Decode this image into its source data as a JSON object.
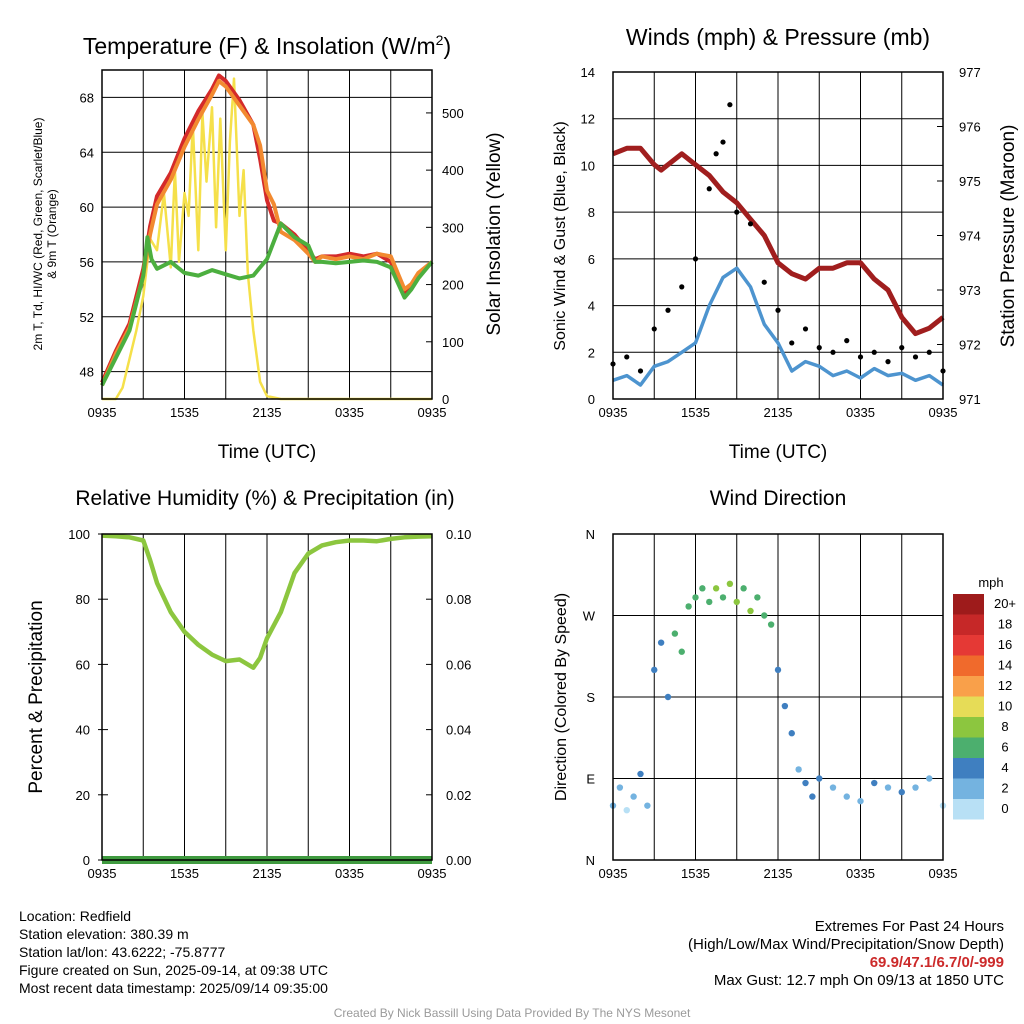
{
  "panels": {
    "temperature": {
      "title": "Temperature (F) & Insolation (W/m²)",
      "title_main": "Temperature (F) & Insolation (W/m",
      "title_sup": "2",
      "title_end": ")",
      "ylabel_left_line1": "2m T, Td, HI/WC (Red, Green, Scarlet/Blue)",
      "ylabel_left_line2": "& 9m T (Orange)",
      "ylabel_right": "Solar Insolation (Yellow)",
      "xlabel": "Time (UTC)"
    },
    "wind": {
      "title": "Winds (mph) & Pressure (mb)",
      "ylabel_left": "Sonic Wind & Gust (Blue, Black)",
      "ylabel_right": "Station Pressure (Maroon)",
      "xlabel": "Time (UTC)"
    },
    "humidity": {
      "title": "Relative Humidity (%) & Precipitation (in)",
      "ylabel_left": "Percent & Precipitation"
    },
    "direction": {
      "title": "Wind Direction",
      "ylabel_left": "Direction (Colored By Speed)",
      "legend_title": "mph",
      "legend_labels": [
        "20+",
        "18",
        "16",
        "14",
        "12",
        "10",
        "8",
        "6",
        "4",
        "2",
        "0"
      ],
      "legend_colors": [
        "#9e1b1b",
        "#c62828",
        "#e53935",
        "#f06a2c",
        "#f9a04a",
        "#e6dc57",
        "#8cc63f",
        "#4caf6e",
        "#3f7fc0",
        "#74b3e0",
        "#b8e0f5"
      ]
    }
  },
  "chart_data": [
    {
      "type": "line",
      "title": "Temperature (F) & Insolation (W/m²)",
      "xlabel": "Time (UTC)",
      "ylabel": "2m T, Td, HI/WC (Red, Green, Scarlet/Blue) & 9m T (Orange)",
      "y2label": "Solar Insolation (Yellow)",
      "x_ticks": [
        "0935",
        "1535",
        "2135",
        "0335",
        "0935"
      ],
      "x_range_hours": [
        0,
        24
      ],
      "ylim": [
        46,
        70
      ],
      "y_ticks": [
        48,
        52,
        56,
        60,
        64,
        68
      ],
      "y2lim": [
        0,
        575
      ],
      "y2_ticks": [
        0,
        100,
        200,
        300,
        400,
        500
      ],
      "grid": true,
      "series": [
        {
          "color": "#d42a2a",
          "axis": "left",
          "x": [
            0,
            1,
            2,
            3,
            3.5,
            4,
            5,
            6,
            7,
            8,
            8.5,
            9,
            10,
            11,
            11.5,
            12,
            12.5,
            13,
            14,
            15,
            15.5,
            16,
            17,
            18,
            19,
            20,
            21,
            22,
            22.5,
            23,
            24
          ],
          "y": [
            47.2,
            49.5,
            51.5,
            55.5,
            58.6,
            60.8,
            62.5,
            65.0,
            67.0,
            68.6,
            69.6,
            69.2,
            67.8,
            66.0,
            63.5,
            60.5,
            59.0,
            58.8,
            58.0,
            56.8,
            56.2,
            56.4,
            56.4,
            56.6,
            56.4,
            56.6,
            56.0,
            53.8,
            54.2,
            55.0,
            56.0
          ]
        },
        {
          "color": "#f28a30",
          "axis": "left",
          "x": [
            0,
            1,
            2,
            3,
            3.5,
            4,
            5,
            6,
            7,
            8,
            8.5,
            9,
            10,
            11,
            11.5,
            12,
            12.5,
            13,
            14,
            15,
            15.5,
            16,
            17,
            18,
            19,
            20,
            21,
            22,
            22.5,
            23,
            24
          ],
          "y": [
            47.0,
            49.3,
            51.2,
            55.0,
            58.0,
            60.2,
            62.0,
            64.4,
            66.4,
            68.2,
            69.2,
            68.8,
            67.4,
            66.0,
            64.5,
            61.2,
            60.2,
            58.2,
            57.6,
            56.6,
            56.0,
            56.4,
            56.2,
            56.4,
            56.2,
            56.6,
            56.4,
            54.0,
            54.4,
            55.2,
            56.0
          ]
        },
        {
          "color": "#4caf3f",
          "axis": "left",
          "x": [
            0,
            1,
            2,
            3,
            3.3,
            3.6,
            4,
            5,
            6,
            7,
            8,
            9,
            10,
            11,
            11.5,
            12,
            13,
            14,
            15,
            15.5,
            16,
            17,
            18,
            19,
            20,
            21,
            22,
            22.5,
            23,
            24
          ],
          "y": [
            47.0,
            49.0,
            51.0,
            55.0,
            57.8,
            56.2,
            55.5,
            56.0,
            55.2,
            55.0,
            55.4,
            55.1,
            54.8,
            55.0,
            55.6,
            56.2,
            58.8,
            57.8,
            57.2,
            56.0,
            56.0,
            55.9,
            56.0,
            56.1,
            56.0,
            55.6,
            53.4,
            54.0,
            54.8,
            56.0
          ]
        },
        {
          "color": "#f5e04a",
          "axis": "right",
          "x": [
            0,
            1,
            1.5,
            2,
            2.5,
            3,
            3.5,
            4,
            4.5,
            5,
            5.3,
            5.6,
            6,
            6.3,
            6.6,
            7,
            7.3,
            7.6,
            8,
            8.3,
            8.6,
            9,
            9.3,
            9.6,
            10,
            10.3,
            10.6,
            11,
            11.5,
            12,
            13,
            24
          ],
          "y": [
            0,
            0,
            20,
            70,
            120,
            180,
            280,
            260,
            360,
            230,
            400,
            240,
            360,
            320,
            480,
            260,
            500,
            380,
            510,
            300,
            490,
            260,
            450,
            560,
            320,
            400,
            220,
            120,
            30,
            5,
            0,
            0
          ]
        }
      ]
    },
    {
      "type": "line",
      "title": "Winds (mph) & Pressure (mb)",
      "xlabel": "Time (UTC)",
      "ylabel": "Sonic Wind & Gust (Blue, Black)",
      "y2label": "Station Pressure (Maroon)",
      "x_ticks": [
        "0935",
        "1535",
        "2135",
        "0335",
        "0935"
      ],
      "x_range_hours": [
        0,
        24
      ],
      "ylim": [
        0,
        14
      ],
      "y_ticks": [
        0,
        2,
        4,
        6,
        8,
        10,
        12,
        14
      ],
      "y2lim": [
        971,
        977
      ],
      "y2_ticks": [
        971,
        972,
        973,
        974,
        975,
        976,
        977
      ],
      "grid": true,
      "series": [
        {
          "color": "#a01e1e",
          "axis": "right",
          "x": [
            0,
            1,
            2,
            3,
            3.5,
            4,
            5,
            6,
            6.5,
            7,
            8,
            9,
            10,
            11,
            12,
            13,
            14,
            15,
            16,
            17,
            18,
            19,
            20,
            21,
            22,
            23,
            24
          ],
          "y": [
            975.5,
            975.6,
            975.6,
            975.3,
            975.2,
            975.3,
            975.5,
            975.3,
            975.2,
            975.1,
            974.8,
            974.6,
            974.3,
            974.0,
            973.5,
            973.3,
            973.2,
            973.4,
            973.4,
            973.5,
            973.5,
            973.2,
            973.0,
            972.5,
            972.2,
            972.3,
            972.5
          ]
        },
        {
          "color": "#4d94cf",
          "axis": "left",
          "x": [
            0,
            1,
            2,
            3,
            4,
            5,
            6,
            7,
            8,
            9,
            10,
            11,
            12,
            13,
            14,
            15,
            16,
            17,
            18,
            19,
            20,
            21,
            22,
            23,
            24
          ],
          "y": [
            0.8,
            1.0,
            0.6,
            1.4,
            1.6,
            2.0,
            2.4,
            4.0,
            5.2,
            5.6,
            4.8,
            3.2,
            2.4,
            1.2,
            1.6,
            1.4,
            1.0,
            1.2,
            0.9,
            1.3,
            1.0,
            1.1,
            0.8,
            1.0,
            0.6
          ]
        },
        {
          "color": "#000000",
          "axis": "left",
          "style": "points",
          "x": [
            0,
            1,
            2,
            3,
            4,
            5,
            6,
            7,
            7.5,
            8,
            8.5,
            9,
            10,
            11,
            12,
            13,
            14,
            15,
            16,
            17,
            18,
            19,
            20,
            21,
            22,
            23,
            24
          ],
          "y": [
            1.5,
            1.8,
            1.2,
            3.0,
            3.8,
            4.8,
            6.0,
            9.0,
            10.5,
            11.0,
            12.6,
            8.0,
            7.5,
            5.0,
            3.8,
            2.4,
            3.0,
            2.2,
            2.0,
            2.5,
            1.8,
            2.0,
            1.6,
            2.2,
            1.8,
            2.0,
            1.2
          ]
        }
      ]
    },
    {
      "type": "line",
      "title": "Relative Humidity (%) & Precipitation (in)",
      "ylabel": "Percent & Precipitation",
      "x_ticks": [
        "0935",
        "1535",
        "2135",
        "0335",
        "0935"
      ],
      "x_range_hours": [
        0,
        24
      ],
      "ylim": [
        0,
        100
      ],
      "y_ticks": [
        0,
        20,
        40,
        60,
        80,
        100
      ],
      "y2lim": [
        0,
        0.1
      ],
      "y2_ticks": [
        "0.00",
        "0.02",
        "0.04",
        "0.06",
        "0.08",
        "0.10"
      ],
      "grid": true,
      "series": [
        {
          "color": "#8cc63f",
          "axis": "left",
          "x": [
            0,
            1,
            2,
            3,
            3.5,
            4,
            5,
            6,
            7,
            8,
            9,
            10,
            11,
            11.5,
            12,
            13,
            14,
            15,
            16,
            17,
            18,
            19,
            20,
            21,
            22,
            23,
            24
          ],
          "y": [
            99.5,
            99.3,
            99.0,
            98.0,
            92.0,
            85.0,
            76.0,
            70.0,
            66.0,
            63.0,
            61.0,
            61.5,
            59.0,
            62.0,
            68.0,
            76.0,
            88.0,
            94.0,
            96.5,
            97.5,
            98.0,
            98.0,
            97.8,
            98.5,
            99.0,
            99.2,
            99.3
          ]
        },
        {
          "color": "#3f9a3f",
          "axis": "right",
          "x": [
            0,
            24
          ],
          "y": [
            0,
            0
          ]
        }
      ]
    },
    {
      "type": "scatter",
      "title": "Wind Direction",
      "ylabel": "Direction (Colored By Speed)",
      "x_ticks": [
        "0935",
        "1535",
        "2135",
        "0335",
        "0935"
      ],
      "x_range_hours": [
        0,
        24
      ],
      "y_ticks": [
        "N",
        "E",
        "S",
        "W",
        "N"
      ],
      "ylim_degrees": [
        0,
        360
      ],
      "grid": true,
      "legend": "right",
      "series": [
        {
          "color_by": "speed_mph",
          "x": [
            0,
            0.5,
            1,
            1.5,
            2,
            2.5,
            3,
            3.5,
            4,
            4.5,
            5,
            5.5,
            6,
            6.5,
            7,
            7.5,
            8,
            8.5,
            9,
            9.5,
            10,
            10.5,
            11,
            11.5,
            12,
            12.5,
            13,
            13.5,
            14,
            14.5,
            15,
            16,
            17,
            18,
            19,
            20,
            21,
            22,
            23,
            24
          ],
          "y": [
            60,
            80,
            55,
            70,
            95,
            60,
            210,
            240,
            180,
            250,
            230,
            280,
            290,
            300,
            285,
            300,
            290,
            305,
            285,
            300,
            275,
            290,
            270,
            260,
            210,
            170,
            140,
            100,
            85,
            70,
            90,
            80,
            70,
            65,
            85,
            80,
            75,
            80,
            90,
            60
          ],
          "speed": [
            1,
            1,
            0,
            1,
            2,
            1,
            3,
            3,
            2,
            4,
            4,
            4,
            5,
            4,
            5,
            6,
            5,
            7,
            6,
            5,
            6,
            5,
            4,
            4,
            3,
            2,
            2,
            1,
            2,
            3,
            2,
            1,
            1,
            1,
            3,
            1,
            2,
            1,
            1,
            0
          ]
        }
      ]
    }
  ],
  "info": {
    "location": "Location: Redfield",
    "elevation": "Station elevation: 380.39 m",
    "latlon": "Station lat/lon: 43.6222; -75.8777",
    "created": "Figure created on Sun, 2025-09-14, at 09:38 UTC",
    "recent": "Most recent data timestamp: 2025/09/14 09:35:00"
  },
  "extremes": {
    "title": "Extremes For Past 24 Hours",
    "subtitle": "(High/Low/Max Wind/Precipitation/Snow Depth)",
    "values": "69.9/47.1/6.7/0/-999",
    "max_gust": "Max Gust: 12.7 mph On 09/13 at 1850 UTC"
  },
  "credit": "Created By Nick Bassill Using Data Provided By The NYS Mesonet"
}
